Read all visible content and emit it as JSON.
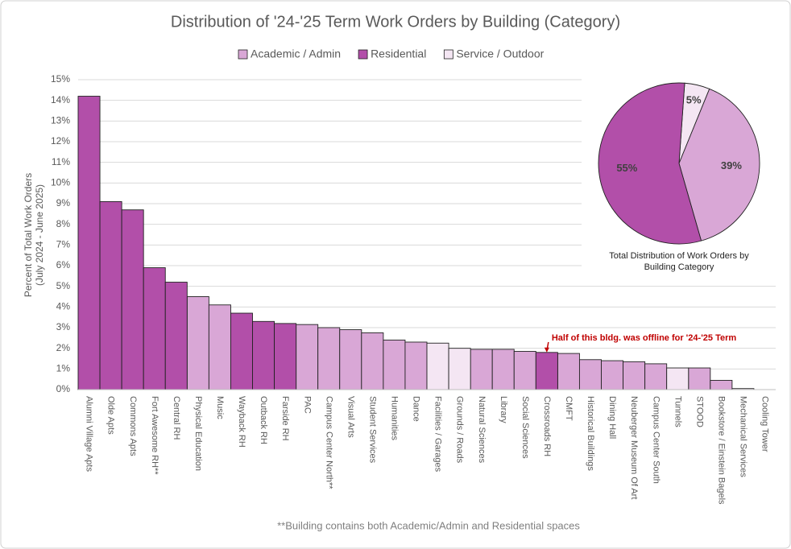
{
  "chart_data": [
    {
      "type": "bar",
      "title": "Distribution of '24-'25 Term Work Orders by Building (Category)",
      "ylabel": [
        "Percent of Total Work Orders",
        "(July 2024 - June 2025)"
      ],
      "categories": [
        "Alumni Village Apts",
        "Olde Apts",
        "Commons Apts",
        "Fort Awesome RH**",
        "Central RH",
        "Physical Education",
        "Music",
        "Wayback RH",
        "Outback RH",
        "Farside RH",
        "PAC",
        "Campus Center North**",
        "Visual Arts",
        "Student Services",
        "Humanities",
        "Dance",
        "Facilities / Garages",
        "Grounds / Roads",
        "Natural Sciences",
        "Library",
        "Social Sciences",
        "Crossroads RH",
        "CMFT",
        "Historical Buildings",
        "Dining Hall",
        "Neuberger Museum Of Art",
        "Campus Center South",
        "Tunnels",
        "STOOD",
        "Bookstore / Einstein Bagels",
        "Mechanical Services",
        "Cooling Tower"
      ],
      "series": [
        {
          "name": "Academic / Admin",
          "color": "#d9a7d6",
          "values": [
            null,
            null,
            null,
            null,
            null,
            4.5,
            4.1,
            null,
            null,
            null,
            3.15,
            3.0,
            2.9,
            2.75,
            2.4,
            2.3,
            null,
            null,
            1.95,
            1.95,
            1.85,
            null,
            1.75,
            1.45,
            1.4,
            1.35,
            1.25,
            null,
            1.05,
            0.45,
            null,
            null
          ]
        },
        {
          "name": "Residential",
          "color": "#b24fa9",
          "values": [
            14.2,
            9.1,
            8.7,
            5.9,
            5.2,
            null,
            null,
            3.7,
            3.3,
            3.2,
            null,
            null,
            null,
            null,
            null,
            null,
            null,
            null,
            null,
            null,
            null,
            1.8,
            null,
            null,
            null,
            null,
            null,
            null,
            null,
            null,
            null,
            null
          ]
        },
        {
          "name": "Service / Outdoor",
          "color": "#f4e6f3",
          "values": [
            null,
            null,
            null,
            null,
            null,
            null,
            null,
            null,
            null,
            null,
            null,
            null,
            null,
            null,
            null,
            null,
            2.25,
            2.0,
            null,
            null,
            null,
            null,
            null,
            null,
            null,
            null,
            null,
            1.05,
            null,
            null,
            0.05,
            0
          ]
        }
      ],
      "ylim": [
        0,
        15
      ],
      "yticks": [
        {
          "value": 0,
          "label": "0%"
        },
        {
          "value": 1,
          "label": "1%"
        },
        {
          "value": 2,
          "label": "2%"
        },
        {
          "value": 3,
          "label": "3%"
        },
        {
          "value": 4,
          "label": "4%"
        },
        {
          "value": 5,
          "label": "5%"
        },
        {
          "value": 6,
          "label": "6%"
        },
        {
          "value": 7,
          "label": "7%"
        },
        {
          "value": 8,
          "label": "8%"
        },
        {
          "value": 9,
          "label": "9%"
        },
        {
          "value": 10,
          "label": "10%"
        },
        {
          "value": 11,
          "label": "11%"
        },
        {
          "value": 12,
          "label": "12%"
        },
        {
          "value": 13,
          "label": "13%"
        },
        {
          "value": 14,
          "label": "14%"
        },
        {
          "value": 15,
          "label": "15%"
        }
      ],
      "grid": true,
      "annotation": "Half of this bldg. was offline for '24-'25 Term",
      "footnote": "**Building contains both Academic/Admin and Residential spaces"
    },
    {
      "type": "pie",
      "title": "Total Distribution of Work Orders by Building Category",
      "values": [
        5,
        39,
        55
      ],
      "value_labels": [
        "5%",
        "39%",
        "55%"
      ],
      "colors": [
        "#f4e6f3",
        "#d9a7d6",
        "#b24fa9"
      ]
    }
  ]
}
